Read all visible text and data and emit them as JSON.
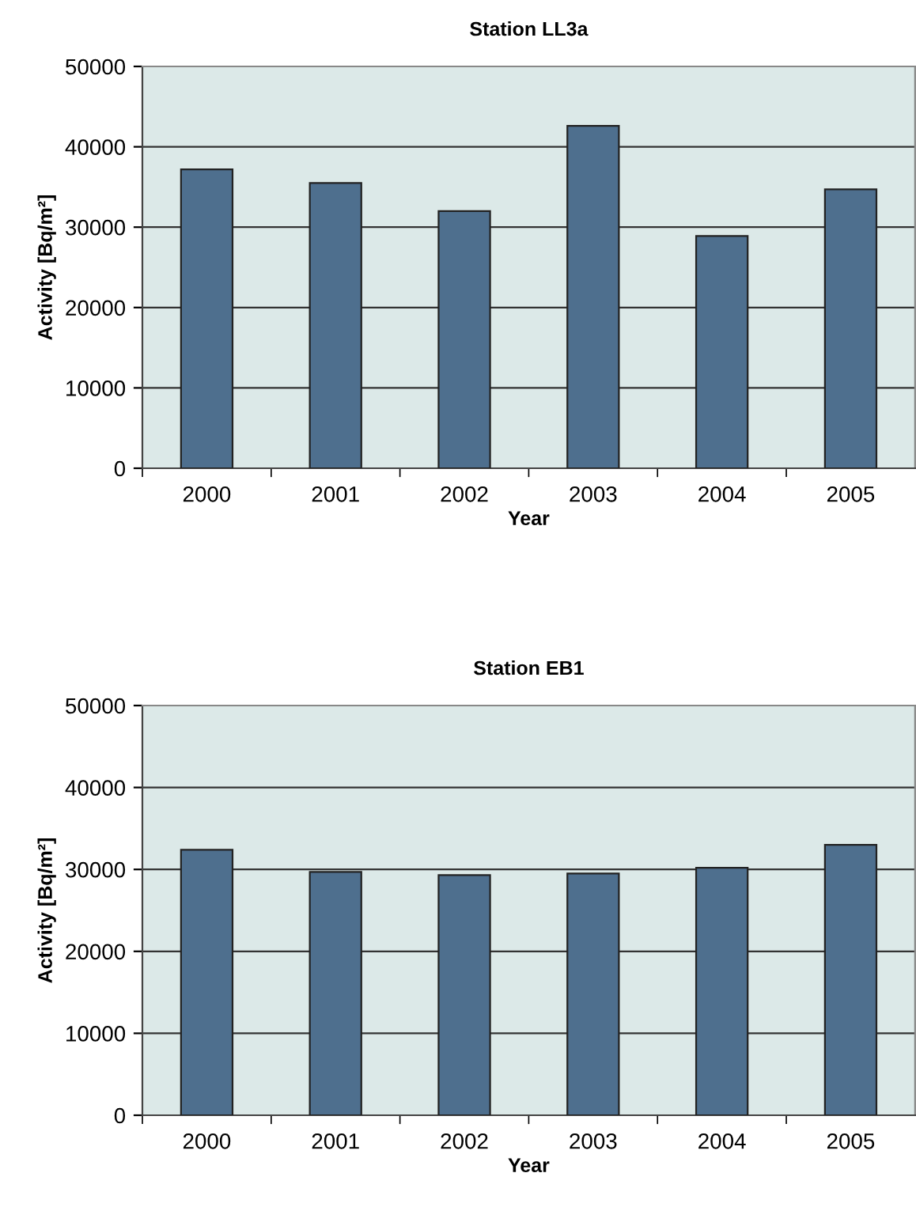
{
  "chart_data": [
    {
      "type": "bar",
      "title": "Station LL3a",
      "xlabel": "Year",
      "ylabel": "Activity [Bq/m²]",
      "categories": [
        "2000",
        "2001",
        "2002",
        "2003",
        "2004",
        "2005"
      ],
      "values": [
        37200,
        35500,
        32000,
        42600,
        28900,
        34700
      ],
      "color": "#4e6f8e",
      "ylim": [
        0,
        50000
      ],
      "yticks": [
        0,
        10000,
        20000,
        30000,
        40000,
        50000
      ],
      "grid": "y"
    },
    {
      "type": "bar",
      "title": "Station EB1",
      "xlabel": "Year",
      "ylabel": "Activity [Bq/m²]",
      "categories": [
        "2000",
        "2001",
        "2002",
        "2003",
        "2004",
        "2005"
      ],
      "values": [
        32400,
        29700,
        29300,
        29500,
        30200,
        33000
      ],
      "color": "#4e6f8e",
      "ylim": [
        0,
        50000
      ],
      "yticks": [
        0,
        10000,
        20000,
        30000,
        40000,
        50000
      ],
      "grid": "y"
    }
  ]
}
